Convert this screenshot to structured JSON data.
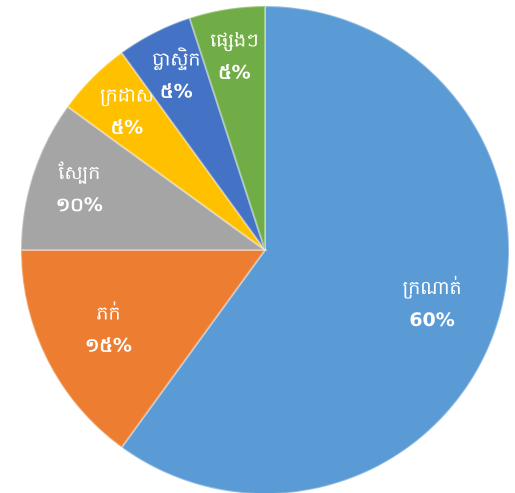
{
  "chart_data": {
    "type": "pie",
    "categories": [
      "ក្រណាត់",
      "ភក់",
      "ស្បែក",
      "ក្រដាស",
      "ប្លាស្ទិក",
      "ផ្សេងៗ"
    ],
    "values": [
      60,
      15,
      10,
      5,
      5,
      5
    ],
    "value_labels": [
      "60%",
      "១៥%",
      "១០%",
      "៥%",
      "៥%",
      "៥%"
    ],
    "colors": [
      "#5b9bd5",
      "#ed7d31",
      "#a5a5a5",
      "#ffc000",
      "#4472c4",
      "#70ad47"
    ]
  }
}
